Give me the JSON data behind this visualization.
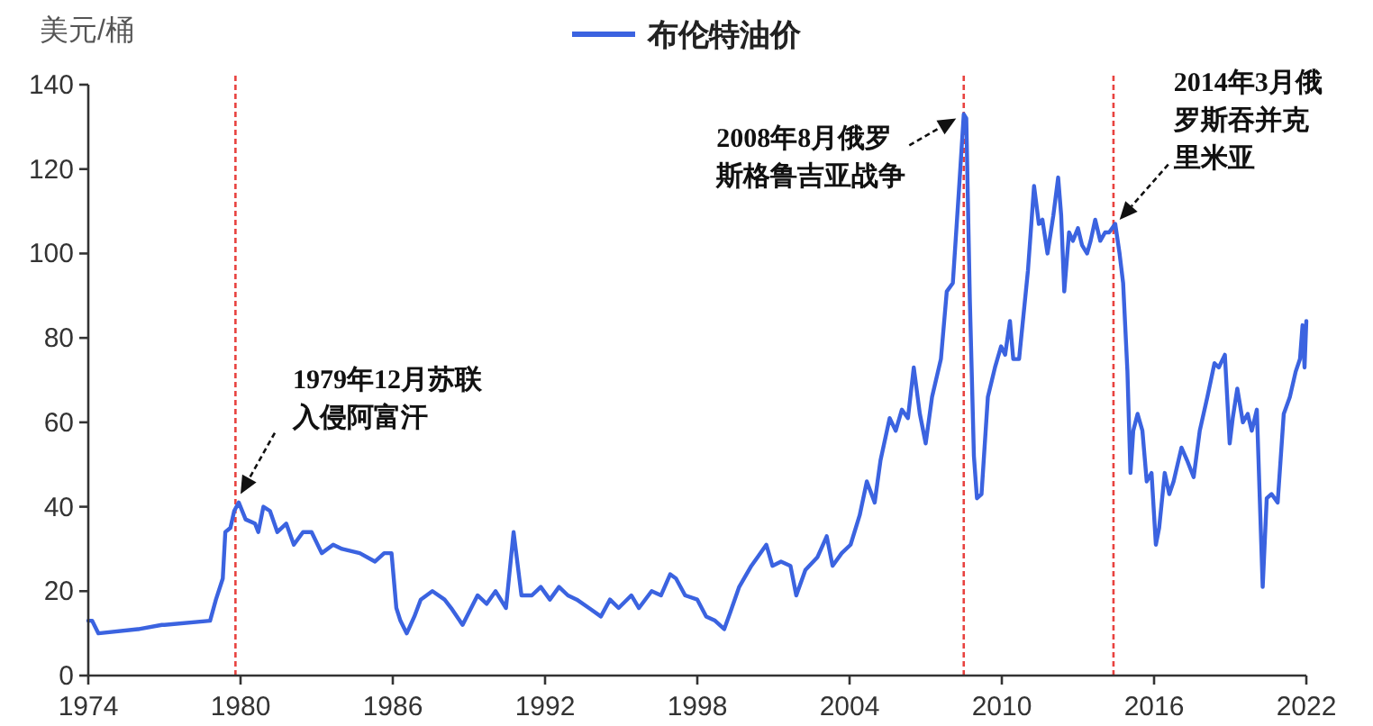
{
  "chart_data": {
    "type": "line",
    "ylabel": "美元/桶",
    "xlim": [
      1974,
      2022
    ],
    "ylim": [
      0,
      140
    ],
    "xticks": [
      1974,
      1980,
      1986,
      1992,
      1998,
      2004,
      2010,
      2016,
      2022
    ],
    "yticks": [
      0,
      20,
      40,
      60,
      80,
      100,
      120,
      140
    ],
    "legend": "top",
    "line_style": "solid",
    "series": [
      {
        "name": "布伦特油价",
        "color": "#3b63e0",
        "x": [
          1974.0,
          1974.15,
          1974.4,
          1975.95,
          1976.0,
          1976.9,
          1977.0,
          1978.8,
          1979.03,
          1979.3,
          1979.4,
          1979.6,
          1979.75,
          1979.93,
          1980.2,
          1980.57,
          1980.7,
          1980.9,
          1981.16,
          1981.45,
          1981.8,
          1982.1,
          1982.46,
          1982.8,
          1983.2,
          1983.65,
          1984.0,
          1984.7,
          1985.3,
          1985.66,
          1985.95,
          1986.14,
          1986.3,
          1986.55,
          1986.85,
          1987.1,
          1987.56,
          1988.04,
          1988.3,
          1988.75,
          1989.34,
          1989.7,
          1990.05,
          1990.46,
          1990.76,
          1991.07,
          1991.48,
          1991.83,
          1992.19,
          1992.55,
          1992.9,
          1993.25,
          1993.73,
          1994.2,
          1994.56,
          1994.9,
          1995.4,
          1995.7,
          1996.2,
          1996.57,
          1996.93,
          1997.16,
          1997.52,
          1998.0,
          1998.35,
          1998.7,
          1999.06,
          1999.3,
          1999.65,
          2000.13,
          2000.37,
          2000.72,
          2000.96,
          2001.3,
          2001.67,
          2001.9,
          2002.26,
          2002.73,
          2003.1,
          2003.33,
          2003.69,
          2004.04,
          2004.4,
          2004.68,
          2004.99,
          2005.22,
          2005.58,
          2005.82,
          2006.06,
          2006.3,
          2006.53,
          2006.77,
          2007.0,
          2007.25,
          2007.6,
          2007.83,
          2008.07,
          2008.31,
          2008.5,
          2008.6,
          2008.74,
          2008.9,
          2009.02,
          2009.2,
          2009.45,
          2009.73,
          2009.97,
          2010.13,
          2010.32,
          2010.45,
          2010.68,
          2011.03,
          2011.27,
          2011.46,
          2011.6,
          2011.8,
          2012.03,
          2012.22,
          2012.34,
          2012.46,
          2012.65,
          2012.8,
          2013.0,
          2013.16,
          2013.36,
          2013.5,
          2013.68,
          2013.88,
          2014.07,
          2014.23,
          2014.47,
          2014.64,
          2014.78,
          2014.95,
          2015.07,
          2015.18,
          2015.35,
          2015.54,
          2015.71,
          2015.9,
          2016.07,
          2016.2,
          2016.42,
          2016.6,
          2016.77,
          2017.08,
          2017.3,
          2017.56,
          2017.8,
          2018.1,
          2018.38,
          2018.55,
          2018.79,
          2018.98,
          2019.1,
          2019.28,
          2019.5,
          2019.69,
          2019.85,
          2020.05,
          2020.28,
          2020.44,
          2020.63,
          2020.87,
          2021.11,
          2021.35,
          2021.58,
          2021.75,
          2021.85,
          2021.93,
          2022.0
        ],
        "values": [
          13,
          13,
          10,
          11,
          11,
          12,
          12,
          13,
          18,
          23,
          34,
          35,
          39,
          41,
          37,
          36,
          34,
          40,
          39,
          34,
          36,
          31,
          34,
          34,
          29,
          31,
          30,
          29,
          27,
          29,
          29,
          16,
          13,
          10,
          14,
          18,
          20,
          18,
          16,
          12,
          19,
          17,
          20,
          16,
          34,
          19,
          19,
          21,
          18,
          21,
          19,
          18,
          16,
          14,
          18,
          16,
          19,
          16,
          20,
          19,
          24,
          23,
          19,
          18,
          14,
          13,
          11,
          15,
          21,
          26,
          28,
          31,
          26,
          27,
          26,
          19,
          25,
          28,
          33,
          26,
          29,
          31,
          38,
          46,
          41,
          51,
          61,
          58,
          63,
          61,
          73,
          62,
          55,
          66,
          75,
          91,
          93,
          115,
          133,
          132,
          89,
          52,
          42,
          43,
          66,
          73,
          78,
          76,
          84,
          75,
          75,
          96,
          116,
          107,
          108,
          100,
          109,
          118,
          109,
          91,
          105,
          103,
          106,
          102,
          100,
          103,
          108,
          103,
          105,
          105,
          107,
          100,
          93,
          72,
          48,
          58,
          62,
          58,
          46,
          48,
          31,
          35,
          48,
          43,
          46,
          54,
          51,
          47,
          58,
          66,
          74,
          73,
          76,
          55,
          61,
          68,
          60,
          62,
          58,
          63,
          21,
          42,
          43,
          41,
          62,
          66,
          72,
          75,
          83,
          73,
          84
        ]
      }
    ],
    "ref_lines": [
      {
        "axis": "x",
        "value": 1979.8,
        "color": "#e8423f",
        "line_style": "dashed"
      },
      {
        "axis": "x",
        "value": 2008.5,
        "color": "#e8423f",
        "line_style": "dashed"
      },
      {
        "axis": "x",
        "value": 2014.4,
        "color": "#e8423f",
        "line_style": "dashed"
      }
    ],
    "annotations": [
      {
        "text": "1979年12月苏联入侵阿富汗",
        "x": 1980.0,
        "y": 43
      },
      {
        "text": "2008年8月俄罗斯格鲁吉亚战争",
        "x": 2008.2,
        "y": 132
      },
      {
        "text": "2014年3月俄罗斯吞并克里米亚",
        "x": 2014.5,
        "y": 107
      }
    ]
  }
}
